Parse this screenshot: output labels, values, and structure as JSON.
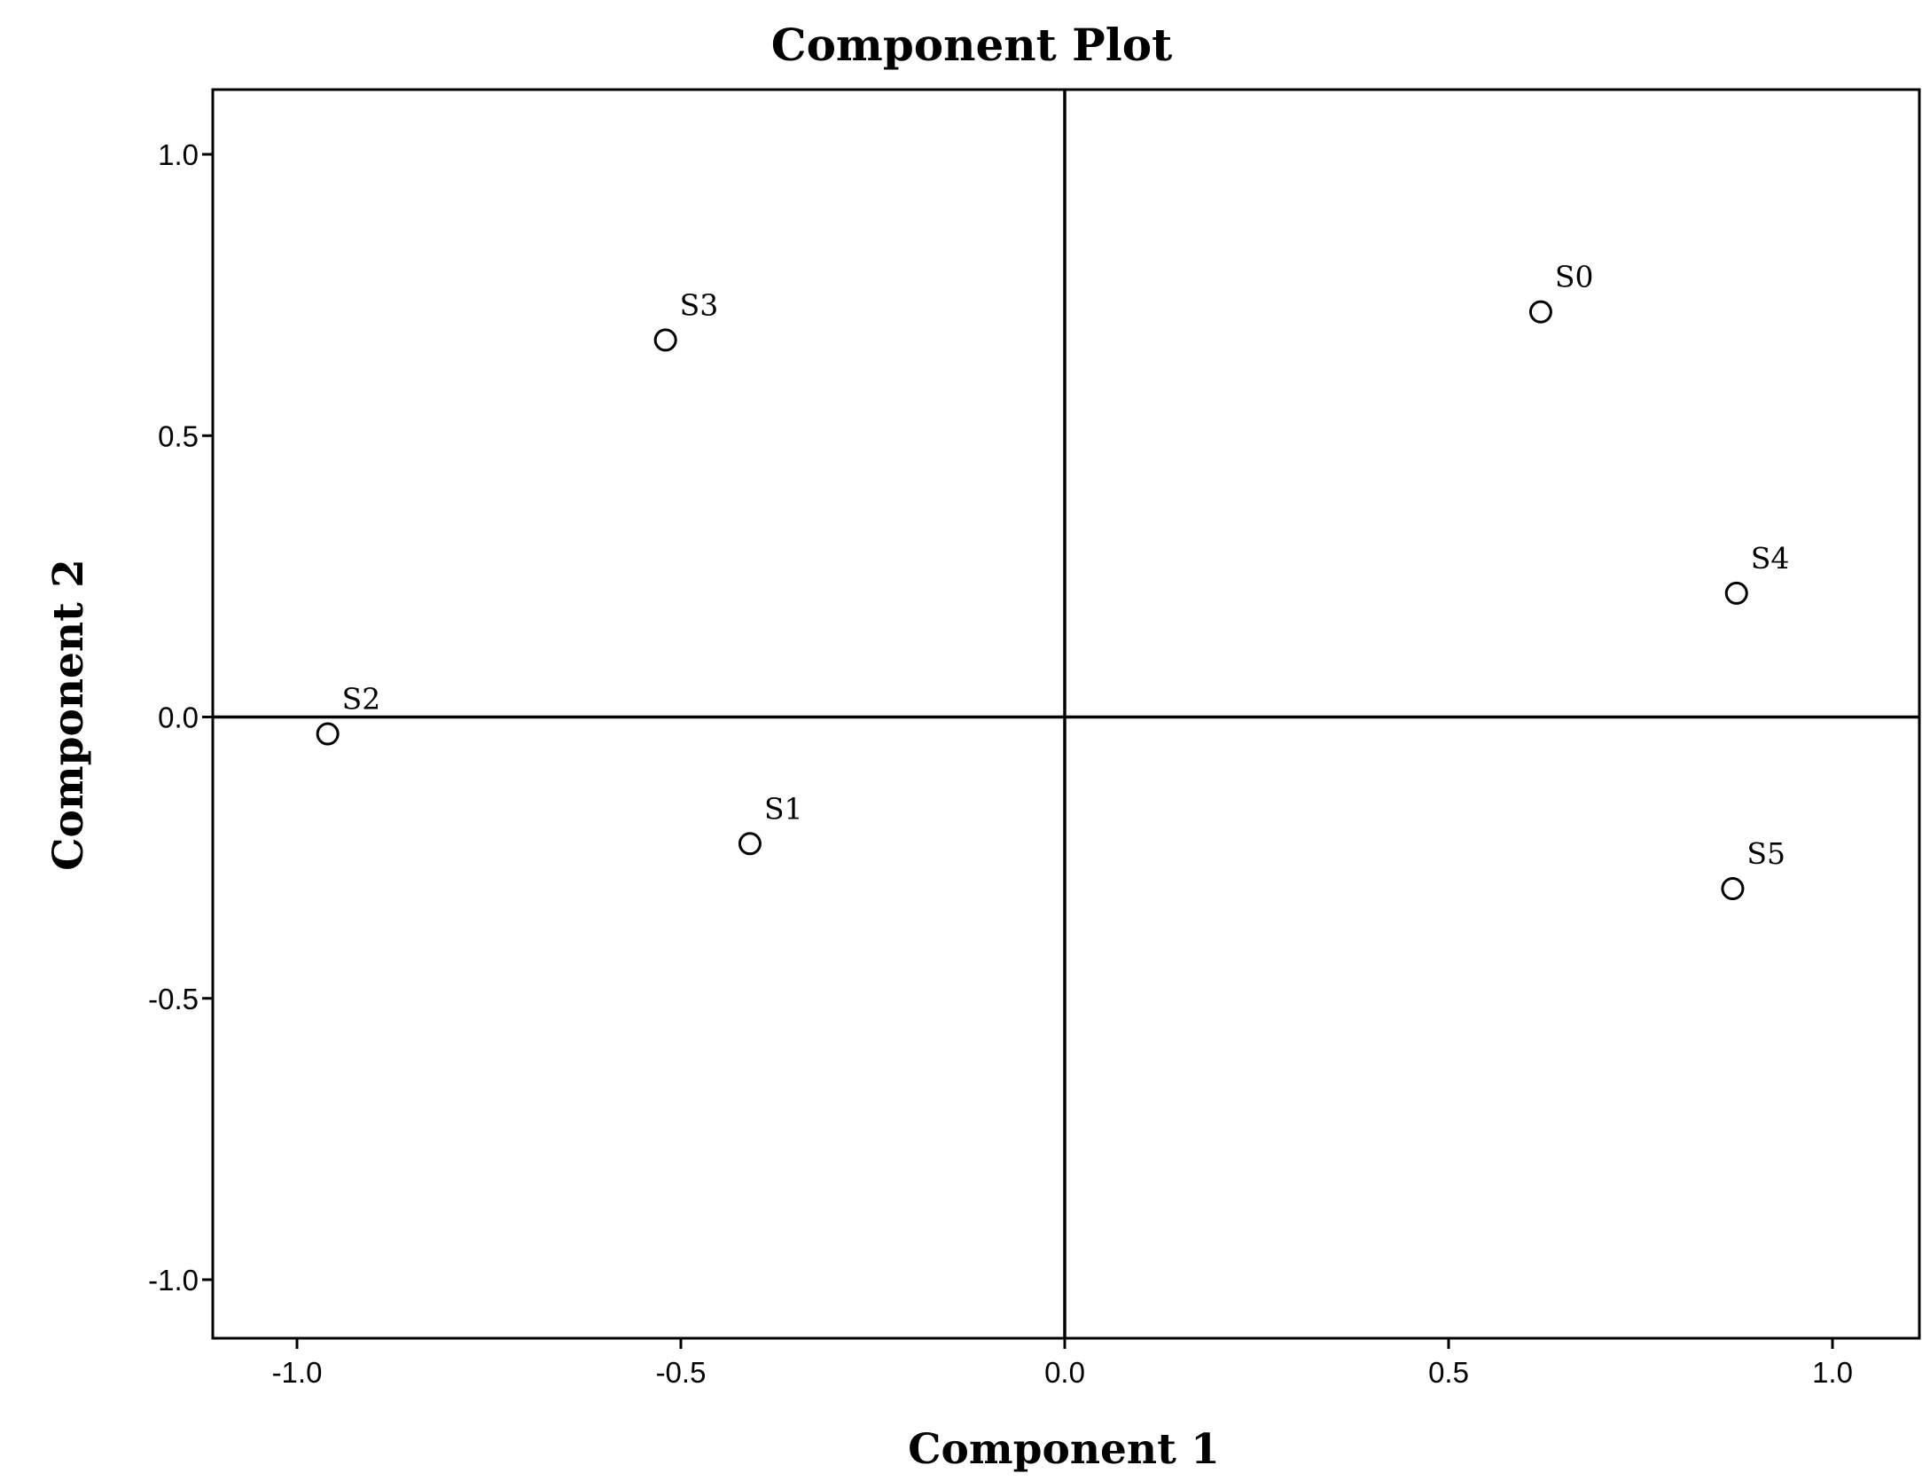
{
  "chart_data": {
    "type": "scatter",
    "title": "Component Plot",
    "xlabel": "Component 1",
    "ylabel": "Component 2",
    "xlim": [
      -1.1,
      1.1
    ],
    "ylim": [
      -1.1,
      1.1
    ],
    "xticks": [
      -1.0,
      -0.5,
      0.0,
      0.5,
      1.0
    ],
    "yticks": [
      -1.0,
      -0.5,
      0.0,
      0.5,
      1.0
    ],
    "xtick_labels": [
      "-1.0",
      "-0.5",
      "0.0",
      "0.5",
      "1.0"
    ],
    "ytick_labels": [
      "-1.0",
      "-0.5",
      "0.0",
      "0.5",
      "1.0"
    ],
    "reference_lines": {
      "x": 0.0,
      "y": 0.0
    },
    "grid": false,
    "points": [
      {
        "label": "S0",
        "x": 0.62,
        "y": 0.72
      },
      {
        "label": "S1",
        "x": -0.41,
        "y": -0.225
      },
      {
        "label": "S2",
        "x": -0.96,
        "y": -0.03
      },
      {
        "label": "S3",
        "x": -0.52,
        "y": 0.67
      },
      {
        "label": "S4",
        "x": 0.875,
        "y": 0.22
      },
      {
        "label": "S5",
        "x": 0.87,
        "y": -0.305
      }
    ]
  }
}
